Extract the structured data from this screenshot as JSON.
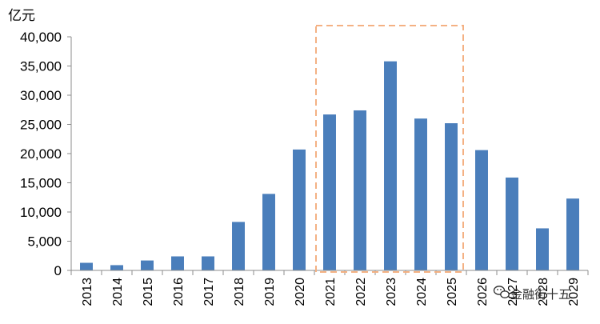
{
  "chart_data": {
    "type": "bar",
    "title": "",
    "ylabel": "亿元",
    "xlabel": "",
    "categories": [
      "2013",
      "2014",
      "2015",
      "2016",
      "2017",
      "2018",
      "2019",
      "2020",
      "2021",
      "2022",
      "2023",
      "2024",
      "2025",
      "2026",
      "2027",
      "2028",
      "2029"
    ],
    "values": [
      1300,
      900,
      1700,
      2400,
      2400,
      8300,
      13100,
      20700,
      26700,
      27400,
      35800,
      26000,
      25200,
      20600,
      15900,
      7200,
      12300
    ],
    "ylim": [
      0,
      40000
    ],
    "yticks": [
      0,
      5000,
      10000,
      15000,
      20000,
      25000,
      30000,
      35000,
      40000
    ],
    "ytick_labels": [
      "0",
      "5,000",
      "10,000",
      "15,000",
      "20,000",
      "25,000",
      "30,000",
      "35,000",
      "40,000"
    ],
    "grid": false,
    "legend": "none",
    "bar_color": "#4a7ebb",
    "highlight": {
      "from": "2021",
      "to": "2025",
      "style": "dashed-box",
      "color": "#f4b183"
    }
  },
  "watermark": {
    "text": "金融街十五",
    "icon": "wechat-icon"
  }
}
